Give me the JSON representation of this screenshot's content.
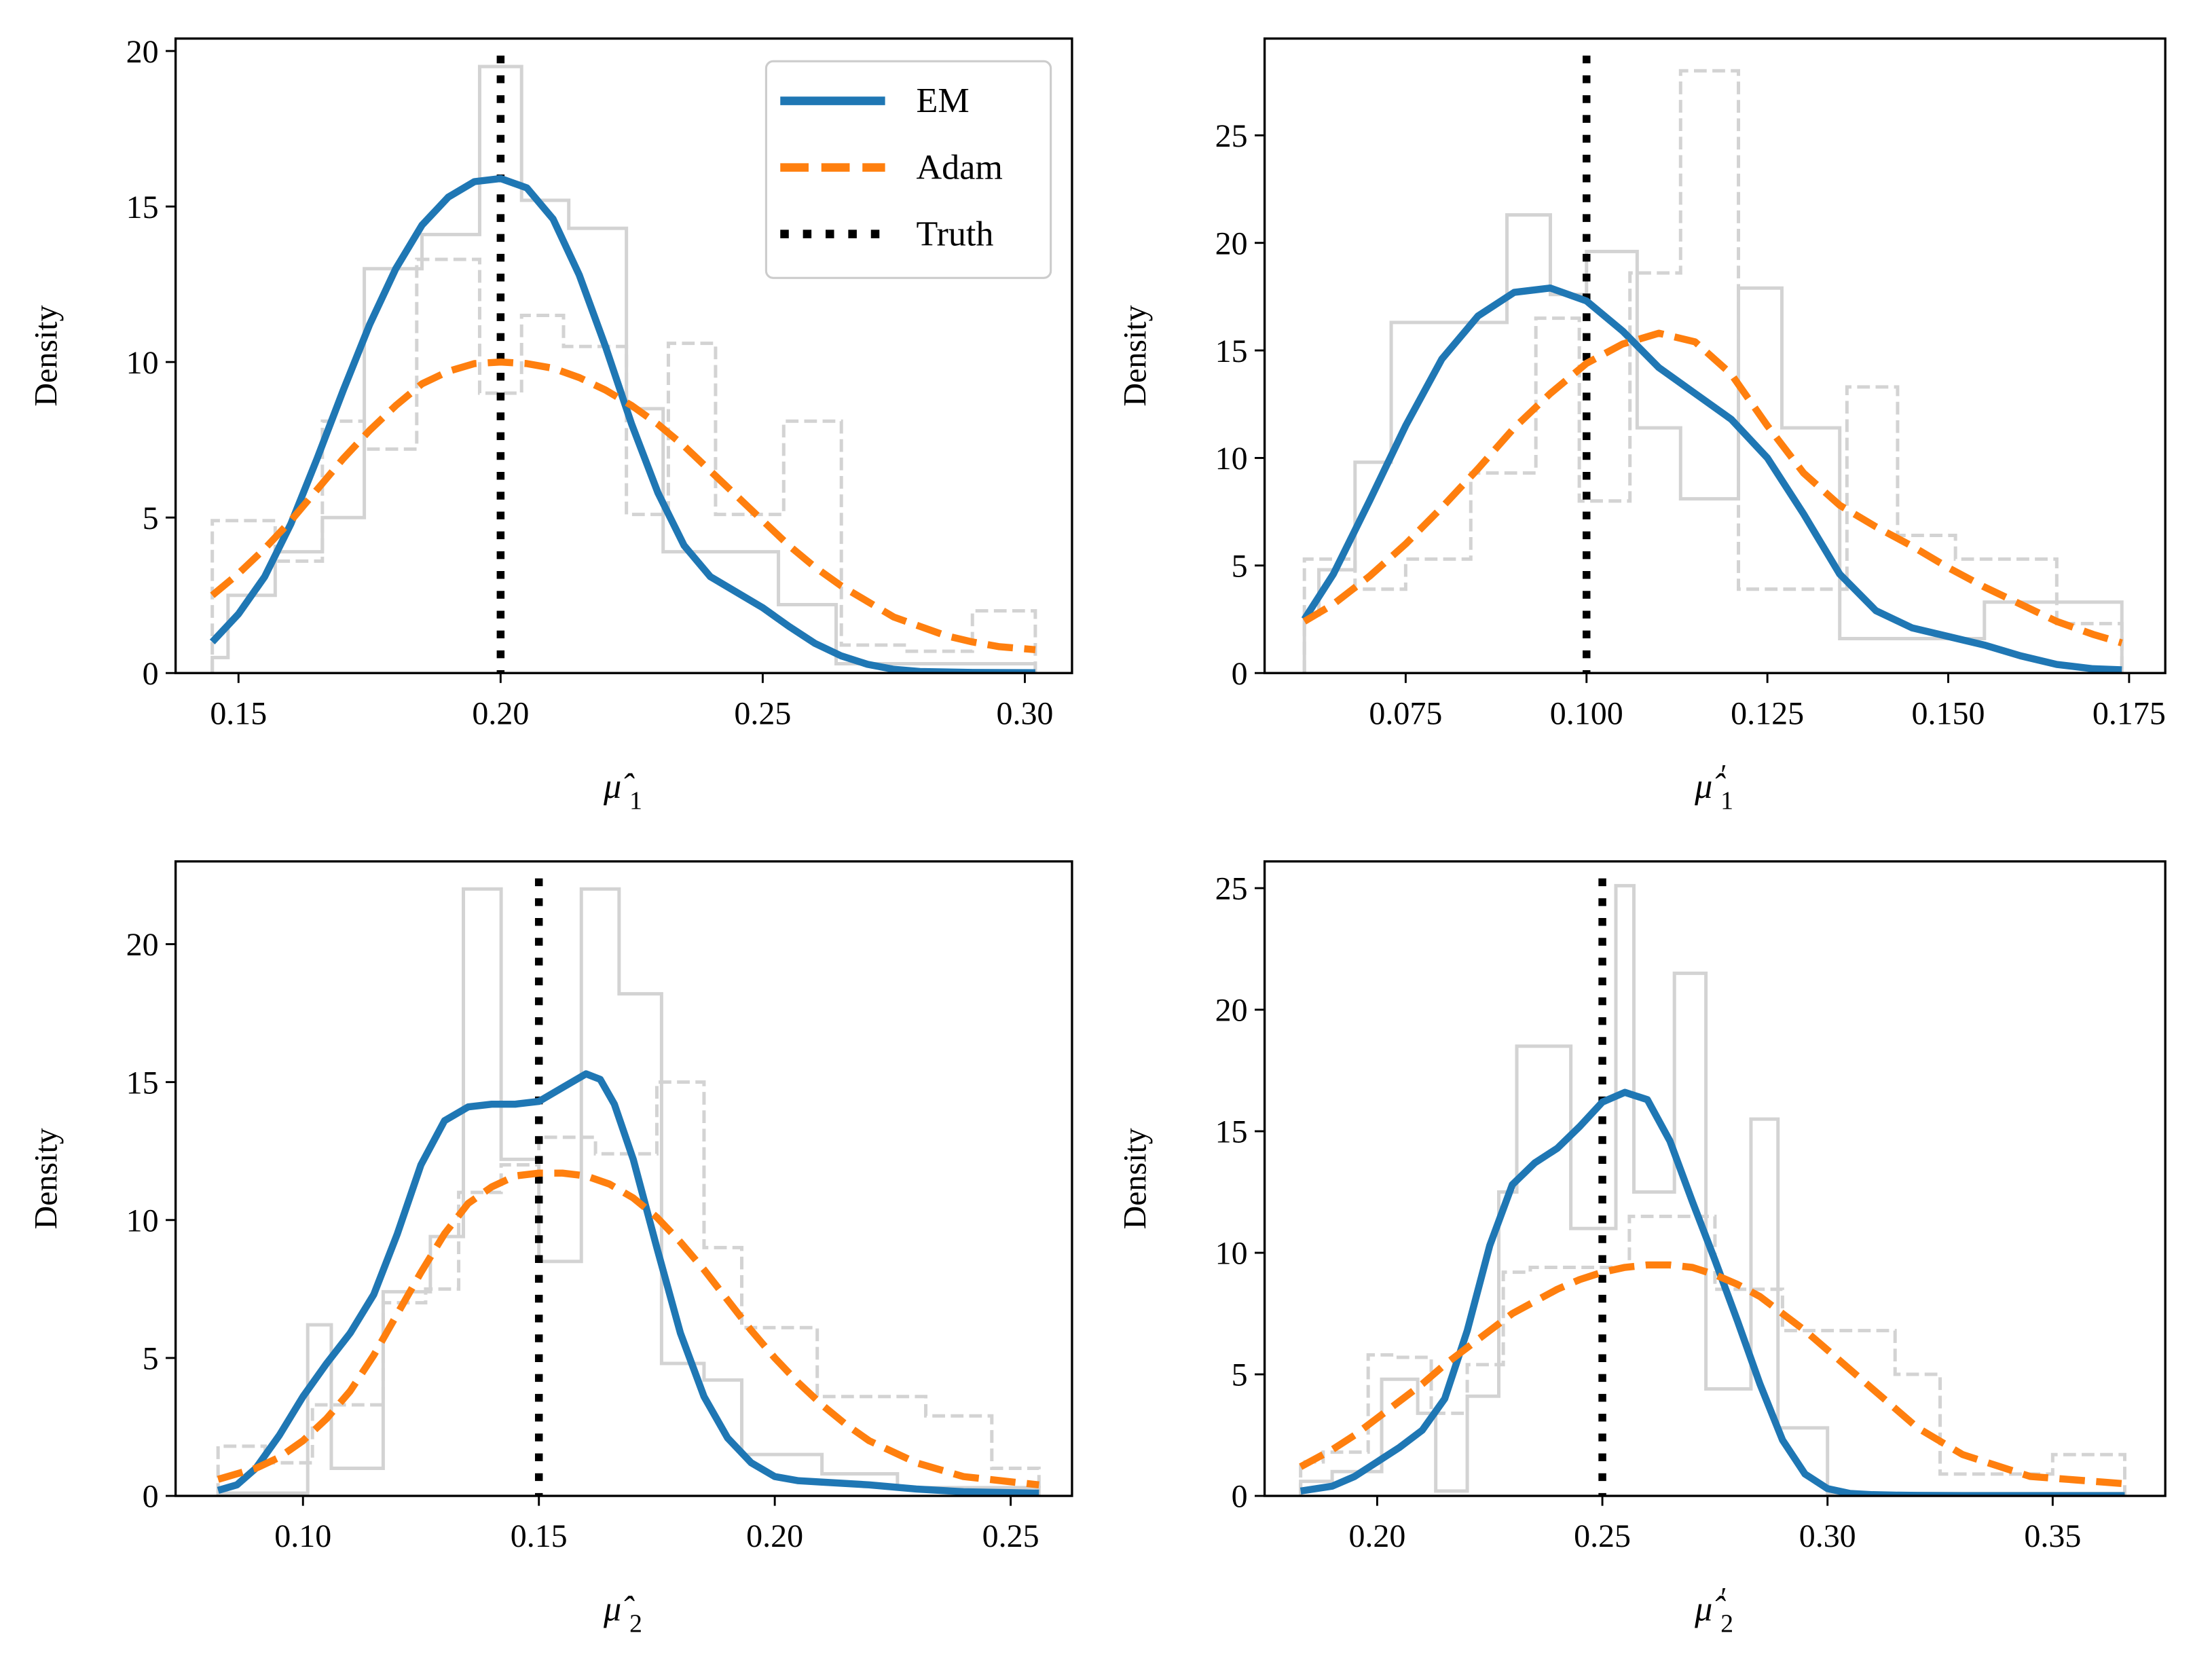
{
  "figure": {
    "colors": {
      "em": "#1f77b4",
      "adam": "#ff7f0e",
      "truth": "#000000",
      "hist": "#d3d3d3"
    },
    "legend": {
      "placement": "upper-right of top-left panel",
      "entries": [
        {
          "label": "EM",
          "style": "solid",
          "series": "em"
        },
        {
          "label": "Adam",
          "style": "dashed",
          "series": "adam"
        },
        {
          "label": "Truth",
          "style": "dotted",
          "series": "truth"
        }
      ]
    }
  },
  "chart_data": [
    {
      "type": "line",
      "panel": "top-left",
      "title": "",
      "xlabel": "μ̂₁",
      "xlabel_base": "μ̂",
      "xlabel_sub": "1",
      "xlabel_prime": false,
      "ylabel": "Density",
      "xlim": [
        0.138,
        0.309
      ],
      "ylim": [
        0,
        20.4
      ],
      "xticks": [
        0.15,
        0.2,
        0.25,
        0.3
      ],
      "xtick_labels": [
        "0.15",
        "0.20",
        "0.25",
        "0.30"
      ],
      "yticks": [
        0,
        5,
        10,
        15,
        20
      ],
      "ytick_labels": [
        "0",
        "5",
        "10",
        "15",
        "20"
      ],
      "truth": 0.2,
      "series": [
        {
          "name": "EM",
          "x": [
            0.145,
            0.15,
            0.155,
            0.16,
            0.165,
            0.17,
            0.175,
            0.18,
            0.185,
            0.19,
            0.195,
            0.2,
            0.205,
            0.21,
            0.215,
            0.22,
            0.225,
            0.23,
            0.235,
            0.24,
            0.245,
            0.25,
            0.255,
            0.26,
            0.265,
            0.27,
            0.275,
            0.28,
            0.29,
            0.302
          ],
          "y": [
            1.0,
            1.9,
            3.1,
            4.8,
            6.9,
            9.1,
            11.2,
            13.0,
            14.4,
            15.3,
            15.8,
            15.9,
            15.6,
            14.6,
            12.8,
            10.5,
            8.0,
            5.8,
            4.1,
            3.1,
            2.6,
            2.1,
            1.5,
            0.95,
            0.55,
            0.28,
            0.12,
            0.05,
            0.02,
            0.01
          ]
        },
        {
          "name": "Adam",
          "x": [
            0.145,
            0.15,
            0.155,
            0.16,
            0.165,
            0.17,
            0.175,
            0.18,
            0.185,
            0.19,
            0.195,
            0.2,
            0.205,
            0.21,
            0.215,
            0.22,
            0.225,
            0.23,
            0.235,
            0.24,
            0.245,
            0.25,
            0.255,
            0.26,
            0.265,
            0.27,
            0.275,
            0.28,
            0.285,
            0.29,
            0.295,
            0.302
          ],
          "y": [
            2.5,
            3.2,
            4.0,
            4.9,
            5.9,
            6.9,
            7.8,
            8.6,
            9.3,
            9.7,
            9.95,
            10.0,
            9.95,
            9.8,
            9.5,
            9.1,
            8.6,
            8.0,
            7.3,
            6.5,
            5.7,
            4.9,
            4.1,
            3.4,
            2.8,
            2.3,
            1.8,
            1.5,
            1.2,
            1.0,
            0.85,
            0.75
          ]
        }
      ],
      "hist": [
        {
          "name": "EM histogram",
          "style": "solid",
          "edges": [
            0.145,
            0.148,
            0.157,
            0.166,
            0.174,
            0.185,
            0.196,
            0.204,
            0.213,
            0.224,
            0.231,
            0.253,
            0.264,
            0.302
          ],
          "heights": [
            0.5,
            2.5,
            3.9,
            5.0,
            13.0,
            14.1,
            19.5,
            15.2,
            14.3,
            8.5,
            3.9,
            2.2,
            0.3
          ]
        },
        {
          "name": "Adam histogram",
          "style": "dashed",
          "edges": [
            0.145,
            0.157,
            0.166,
            0.174,
            0.184,
            0.196,
            0.204,
            0.212,
            0.224,
            0.232,
            0.241,
            0.254,
            0.265,
            0.277,
            0.29,
            0.302
          ],
          "heights": [
            4.9,
            3.6,
            8.1,
            7.2,
            13.3,
            9.0,
            11.5,
            10.5,
            5.1,
            10.6,
            5.1,
            8.1,
            0.9,
            0.7,
            2.0
          ]
        }
      ]
    },
    {
      "type": "line",
      "panel": "top-right",
      "title": "",
      "xlabel": "μ̂′₁",
      "xlabel_base": "μ̂",
      "xlabel_sub": "1",
      "xlabel_prime": true,
      "ylabel": "Density",
      "xlim": [
        0.0555,
        0.18
      ],
      "ylim": [
        0,
        29.5
      ],
      "xticks": [
        0.075,
        0.1,
        0.125,
        0.15,
        0.175
      ],
      "xtick_labels": [
        "0.075",
        "0.100",
        "0.125",
        "0.150",
        "0.175"
      ],
      "yticks": [
        0,
        5,
        10,
        15,
        20,
        25
      ],
      "ytick_labels": [
        "0",
        "5",
        "10",
        "15",
        "20",
        "25"
      ],
      "truth": 0.1,
      "series": [
        {
          "name": "EM",
          "x": [
            0.061,
            0.065,
            0.07,
            0.075,
            0.08,
            0.085,
            0.09,
            0.095,
            0.1,
            0.105,
            0.11,
            0.115,
            0.12,
            0.125,
            0.13,
            0.135,
            0.14,
            0.145,
            0.15,
            0.155,
            0.16,
            0.165,
            0.17,
            0.174
          ],
          "y": [
            2.5,
            4.6,
            8.0,
            11.5,
            14.6,
            16.6,
            17.7,
            17.9,
            17.3,
            15.9,
            14.2,
            13.0,
            11.8,
            10.0,
            7.4,
            4.6,
            2.9,
            2.1,
            1.7,
            1.3,
            0.8,
            0.4,
            0.2,
            0.15
          ]
        },
        {
          "name": "Adam",
          "x": [
            0.061,
            0.065,
            0.07,
            0.075,
            0.08,
            0.085,
            0.09,
            0.095,
            0.1,
            0.105,
            0.11,
            0.115,
            0.12,
            0.125,
            0.13,
            0.135,
            0.14,
            0.145,
            0.15,
            0.155,
            0.16,
            0.165,
            0.17,
            0.174
          ],
          "y": [
            2.4,
            3.2,
            4.5,
            6.0,
            7.7,
            9.5,
            11.4,
            13.0,
            14.4,
            15.3,
            15.8,
            15.4,
            13.9,
            11.5,
            9.3,
            7.8,
            6.8,
            5.9,
            4.9,
            4.0,
            3.2,
            2.4,
            1.8,
            1.4
          ]
        }
      ],
      "hist": [
        {
          "name": "EM histogram",
          "style": "solid",
          "edges": [
            0.061,
            0.063,
            0.068,
            0.073,
            0.079,
            0.089,
            0.095,
            0.1,
            0.107,
            0.113,
            0.121,
            0.127,
            0.135,
            0.155,
            0.174
          ],
          "heights": [
            2.7,
            4.8,
            9.8,
            16.3,
            16.3,
            21.3,
            17.6,
            19.6,
            11.4,
            8.1,
            17.9,
            11.4,
            1.6,
            3.3
          ]
        },
        {
          "name": "Adam histogram",
          "style": "dashed",
          "edges": [
            0.061,
            0.068,
            0.075,
            0.084,
            0.093,
            0.099,
            0.106,
            0.113,
            0.121,
            0.136,
            0.143,
            0.151,
            0.165,
            0.174
          ],
          "heights": [
            5.3,
            3.9,
            5.3,
            9.3,
            16.5,
            8.0,
            18.6,
            28.0,
            3.9,
            13.3,
            6.4,
            5.3,
            2.3
          ]
        }
      ]
    },
    {
      "type": "line",
      "panel": "bottom-left",
      "title": "",
      "xlabel": "μ̂₂",
      "xlabel_base": "μ̂",
      "xlabel_sub": "2",
      "xlabel_prime": false,
      "ylabel": "Density",
      "xlim": [
        0.073,
        0.263
      ],
      "ylim": [
        0,
        23
      ],
      "xticks": [
        0.1,
        0.15,
        0.2,
        0.25
      ],
      "xtick_labels": [
        "0.10",
        "0.15",
        "0.20",
        "0.25"
      ],
      "yticks": [
        0,
        5,
        10,
        15,
        20
      ],
      "ytick_labels": [
        "0",
        "5",
        "10",
        "15",
        "20"
      ],
      "truth": 0.15,
      "series": [
        {
          "name": "EM",
          "x": [
            0.082,
            0.086,
            0.09,
            0.095,
            0.1,
            0.105,
            0.11,
            0.115,
            0.12,
            0.125,
            0.13,
            0.135,
            0.14,
            0.145,
            0.15,
            0.155,
            0.16,
            0.163,
            0.166,
            0.17,
            0.175,
            0.18,
            0.185,
            0.19,
            0.195,
            0.2,
            0.205,
            0.21,
            0.22,
            0.23,
            0.24,
            0.256
          ],
          "y": [
            0.2,
            0.4,
            1.0,
            2.2,
            3.6,
            4.8,
            5.9,
            7.3,
            9.5,
            12.0,
            13.6,
            14.1,
            14.2,
            14.2,
            14.3,
            14.8,
            15.3,
            15.1,
            14.2,
            12.2,
            9.0,
            5.9,
            3.6,
            2.1,
            1.2,
            0.7,
            0.55,
            0.5,
            0.4,
            0.25,
            0.15,
            0.1
          ]
        },
        {
          "name": "Adam",
          "x": [
            0.082,
            0.09,
            0.095,
            0.1,
            0.105,
            0.11,
            0.115,
            0.12,
            0.125,
            0.13,
            0.135,
            0.14,
            0.145,
            0.15,
            0.155,
            0.16,
            0.165,
            0.17,
            0.175,
            0.18,
            0.185,
            0.19,
            0.195,
            0.2,
            0.205,
            0.21,
            0.215,
            0.22,
            0.23,
            0.24,
            0.256
          ],
          "y": [
            0.6,
            1.0,
            1.4,
            2.0,
            2.8,
            3.8,
            5.1,
            6.6,
            8.1,
            9.5,
            10.6,
            11.2,
            11.6,
            11.7,
            11.7,
            11.6,
            11.3,
            10.8,
            10.1,
            9.2,
            8.2,
            7.1,
            6.0,
            5.0,
            4.1,
            3.3,
            2.6,
            2.0,
            1.2,
            0.7,
            0.4
          ]
        }
      ],
      "hist": [
        {
          "name": "EM histogram",
          "style": "solid",
          "edges": [
            0.082,
            0.101,
            0.106,
            0.117,
            0.127,
            0.134,
            0.142,
            0.15,
            0.159,
            0.167,
            0.176,
            0.185,
            0.193,
            0.21,
            0.226,
            0.256
          ],
          "heights": [
            0.1,
            6.2,
            1.0,
            7.4,
            9.4,
            22.0,
            12.2,
            8.5,
            22.0,
            18.2,
            4.8,
            4.2,
            1.5,
            0.8,
            0.3
          ]
        },
        {
          "name": "Adam histogram",
          "style": "dashed",
          "edges": [
            0.082,
            0.092,
            0.102,
            0.117,
            0.126,
            0.133,
            0.142,
            0.15,
            0.162,
            0.175,
            0.185,
            0.193,
            0.209,
            0.224,
            0.232,
            0.246,
            0.256
          ],
          "heights": [
            1.8,
            1.2,
            3.3,
            7.0,
            7.5,
            11.0,
            12.0,
            13.0,
            12.4,
            15.0,
            9.0,
            6.1,
            3.6,
            3.6,
            2.9,
            1.0
          ]
        }
      ]
    },
    {
      "type": "line",
      "panel": "bottom-right",
      "title": "",
      "xlabel": "μ̂′₂",
      "xlabel_base": "μ̂",
      "xlabel_sub": "2",
      "xlabel_prime": true,
      "ylabel": "Density",
      "xlim": [
        0.175,
        0.375
      ],
      "ylim": [
        0,
        26.1
      ],
      "xticks": [
        0.2,
        0.25,
        0.3,
        0.35
      ],
      "xtick_labels": [
        "0.20",
        "0.25",
        "0.30",
        "0.35"
      ],
      "yticks": [
        0,
        5,
        10,
        15,
        20,
        25
      ],
      "ytick_labels": [
        "0",
        "5",
        "10",
        "15",
        "20",
        "25"
      ],
      "truth": 0.25,
      "series": [
        {
          "name": "EM",
          "x": [
            0.183,
            0.19,
            0.195,
            0.2,
            0.205,
            0.21,
            0.215,
            0.22,
            0.225,
            0.23,
            0.235,
            0.24,
            0.245,
            0.25,
            0.255,
            0.26,
            0.265,
            0.27,
            0.275,
            0.28,
            0.285,
            0.29,
            0.295,
            0.3,
            0.305,
            0.31,
            0.315,
            0.32,
            0.33,
            0.345,
            0.366
          ],
          "y": [
            0.2,
            0.4,
            0.8,
            1.4,
            2.0,
            2.7,
            4.0,
            6.8,
            10.3,
            12.8,
            13.7,
            14.3,
            15.2,
            16.2,
            16.6,
            16.3,
            14.6,
            12.1,
            9.7,
            7.2,
            4.6,
            2.3,
            0.9,
            0.3,
            0.1,
            0.05,
            0.03,
            0.02,
            0.01,
            0.01,
            0.01
          ]
        },
        {
          "name": "Adam",
          "x": [
            0.183,
            0.19,
            0.195,
            0.2,
            0.205,
            0.21,
            0.215,
            0.22,
            0.225,
            0.23,
            0.235,
            0.24,
            0.245,
            0.25,
            0.255,
            0.26,
            0.265,
            0.27,
            0.275,
            0.28,
            0.285,
            0.29,
            0.295,
            0.3,
            0.305,
            0.31,
            0.315,
            0.32,
            0.33,
            0.345,
            0.366
          ],
          "y": [
            1.2,
            1.9,
            2.5,
            3.2,
            3.9,
            4.6,
            5.4,
            6.1,
            6.8,
            7.5,
            8.0,
            8.5,
            8.9,
            9.2,
            9.4,
            9.5,
            9.5,
            9.4,
            9.1,
            8.7,
            8.2,
            7.5,
            6.8,
            6.0,
            5.2,
            4.4,
            3.6,
            2.8,
            1.7,
            0.8,
            0.5
          ]
        }
      ],
      "hist": [
        {
          "name": "EM histogram",
          "style": "solid",
          "edges": [
            0.183,
            0.19,
            0.201,
            0.209,
            0.213,
            0.22,
            0.227,
            0.231,
            0.243,
            0.253,
            0.257,
            0.266,
            0.273,
            0.283,
            0.289,
            0.3,
            0.366
          ],
          "heights": [
            0.6,
            1.0,
            4.8,
            3.4,
            0.2,
            4.1,
            12.5,
            18.5,
            11.0,
            25.1,
            12.5,
            21.5,
            4.4,
            15.5,
            2.8,
            0.1
          ]
        },
        {
          "name": "Adam histogram",
          "style": "dashed",
          "edges": [
            0.183,
            0.188,
            0.198,
            0.204,
            0.212,
            0.22,
            0.228,
            0.234,
            0.256,
            0.275,
            0.29,
            0.315,
            0.325,
            0.35,
            0.366
          ],
          "heights": [
            1.4,
            1.8,
            5.8,
            5.7,
            3.4,
            5.4,
            9.2,
            9.4,
            11.5,
            8.5,
            6.8,
            5.0,
            0.9,
            1.7
          ]
        }
      ]
    }
  ]
}
